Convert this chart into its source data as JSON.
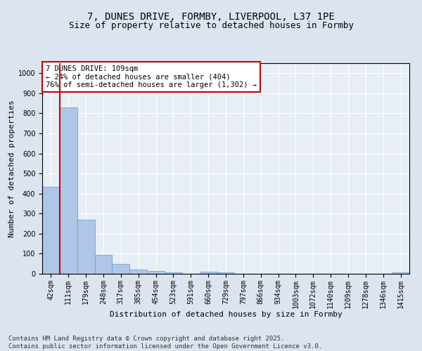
{
  "title_line1": "7, DUNES DRIVE, FORMBY, LIVERPOOL, L37 1PE",
  "title_line2": "Size of property relative to detached houses in Formby",
  "xlabel": "Distribution of detached houses by size in Formby",
  "ylabel": "Number of detached properties",
  "categories": [
    "42sqm",
    "111sqm",
    "179sqm",
    "248sqm",
    "317sqm",
    "385sqm",
    "454sqm",
    "523sqm",
    "591sqm",
    "660sqm",
    "729sqm",
    "797sqm",
    "866sqm",
    "934sqm",
    "1003sqm",
    "1072sqm",
    "1140sqm",
    "1209sqm",
    "1278sqm",
    "1346sqm",
    "1415sqm"
  ],
  "values": [
    435,
    830,
    270,
    95,
    48,
    20,
    13,
    8,
    0,
    9,
    8,
    0,
    0,
    0,
    0,
    0,
    0,
    0,
    0,
    0,
    8
  ],
  "bar_color": "#aec6e8",
  "bar_edge_color": "#5b9bd5",
  "vline_color": "#cc0000",
  "annotation_text": "7 DUNES DRIVE: 109sqm\n← 24% of detached houses are smaller (404)\n76% of semi-detached houses are larger (1,302) →",
  "annotation_box_color": "#cc0000",
  "ylim": [
    0,
    1050
  ],
  "yticks": [
    0,
    100,
    200,
    300,
    400,
    500,
    600,
    700,
    800,
    900,
    1000
  ],
  "background_color": "#e8eef5",
  "grid_color": "#ffffff",
  "footer": "Contains HM Land Registry data © Crown copyright and database right 2025.\nContains public sector information licensed under the Open Government Licence v3.0.",
  "title_fontsize": 10,
  "subtitle_fontsize": 9,
  "axis_label_fontsize": 8,
  "tick_fontsize": 7,
  "annotation_fontsize": 7.5,
  "footer_fontsize": 6.5
}
